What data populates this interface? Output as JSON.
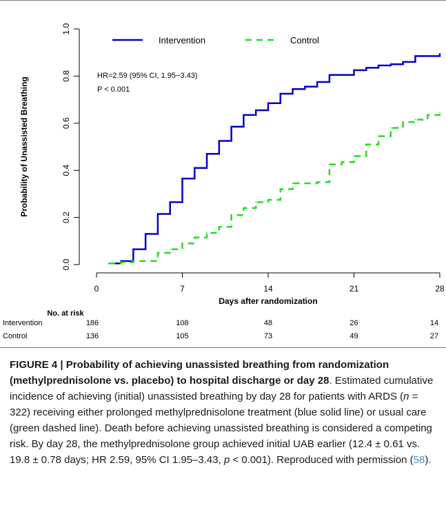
{
  "chart_data": {
    "type": "line",
    "step": true,
    "title": "",
    "xlabel": "Days after randomization",
    "ylabel": "Probability of Unassisted Breathing",
    "xlim": [
      0,
      28
    ],
    "ylim": [
      0,
      1
    ],
    "xticks": [
      0,
      7,
      14,
      21,
      28
    ],
    "yticks": [
      "0.0",
      "0.2",
      "0.4",
      "0.6",
      "0.8",
      "1.0"
    ],
    "legend_position": "top",
    "annotation": [
      "HR=2.59 (95% CI, 1.95−3.43)",
      "P < 0.001"
    ],
    "series": [
      {
        "name": "Intervention",
        "color": "#0000cc",
        "style": "solid",
        "x": [
          1,
          2,
          3,
          4,
          5,
          6,
          7,
          8,
          9,
          10,
          11,
          12,
          13,
          14,
          15,
          16,
          17,
          18,
          19,
          21,
          22,
          23,
          24,
          25,
          26,
          28
        ],
        "y": [
          0.005,
          0.015,
          0.065,
          0.13,
          0.215,
          0.265,
          0.365,
          0.41,
          0.47,
          0.525,
          0.585,
          0.635,
          0.655,
          0.685,
          0.725,
          0.745,
          0.755,
          0.775,
          0.805,
          0.825,
          0.835,
          0.845,
          0.85,
          0.86,
          0.885,
          0.895
        ]
      },
      {
        "name": "Control",
        "color": "#22dd22",
        "style": "dashed",
        "x": [
          1,
          2,
          3,
          5,
          6,
          7,
          8,
          9,
          10,
          11,
          12,
          13,
          14,
          15,
          16,
          18,
          19,
          20,
          21,
          22,
          23,
          24,
          25,
          26,
          27,
          28
        ],
        "y": [
          0.005,
          0.01,
          0.015,
          0.05,
          0.065,
          0.09,
          0.115,
          0.135,
          0.16,
          0.21,
          0.24,
          0.265,
          0.275,
          0.32,
          0.345,
          0.35,
          0.425,
          0.435,
          0.46,
          0.51,
          0.545,
          0.58,
          0.605,
          0.615,
          0.635,
          0.645
        ]
      }
    ],
    "risk_table": {
      "title": "No. at risk",
      "times": [
        0,
        7,
        14,
        21,
        28
      ],
      "rows": [
        {
          "label": "Intervention",
          "values": [
            186,
            108,
            48,
            26,
            14
          ]
        },
        {
          "label": "Control",
          "values": [
            136,
            105,
            73,
            49,
            27
          ]
        }
      ]
    }
  },
  "caption": {
    "label": "FIGURE 4",
    "separator": " | ",
    "title": "Probability of achieving unassisted breathing from randomization (methylprednisolone vs. placebo) to hospital discharge or day 28",
    "text_1": ". Estimated cumulative incidence of achieving (initial) unassisted breathing by day 28 for patients with ARDS (",
    "n_var": "n",
    "text_2": " = 322) receiving either prolonged methylprednisolone treatment (blue solid line) or usual care (green dashed line). Death before achieving unassisted breathing is considered a competing risk. By day 28, the methylprednisolone group achieved initial UAB earlier (12.4 ± 0.61 vs. 19.8 ± 0.78 days; HR 2.59, 95% CI 1.95–3.43, ",
    "p_var": "p",
    "text_3": " < 0.001). Reproduced with permission (",
    "ref": "58",
    "text_4": ")."
  }
}
